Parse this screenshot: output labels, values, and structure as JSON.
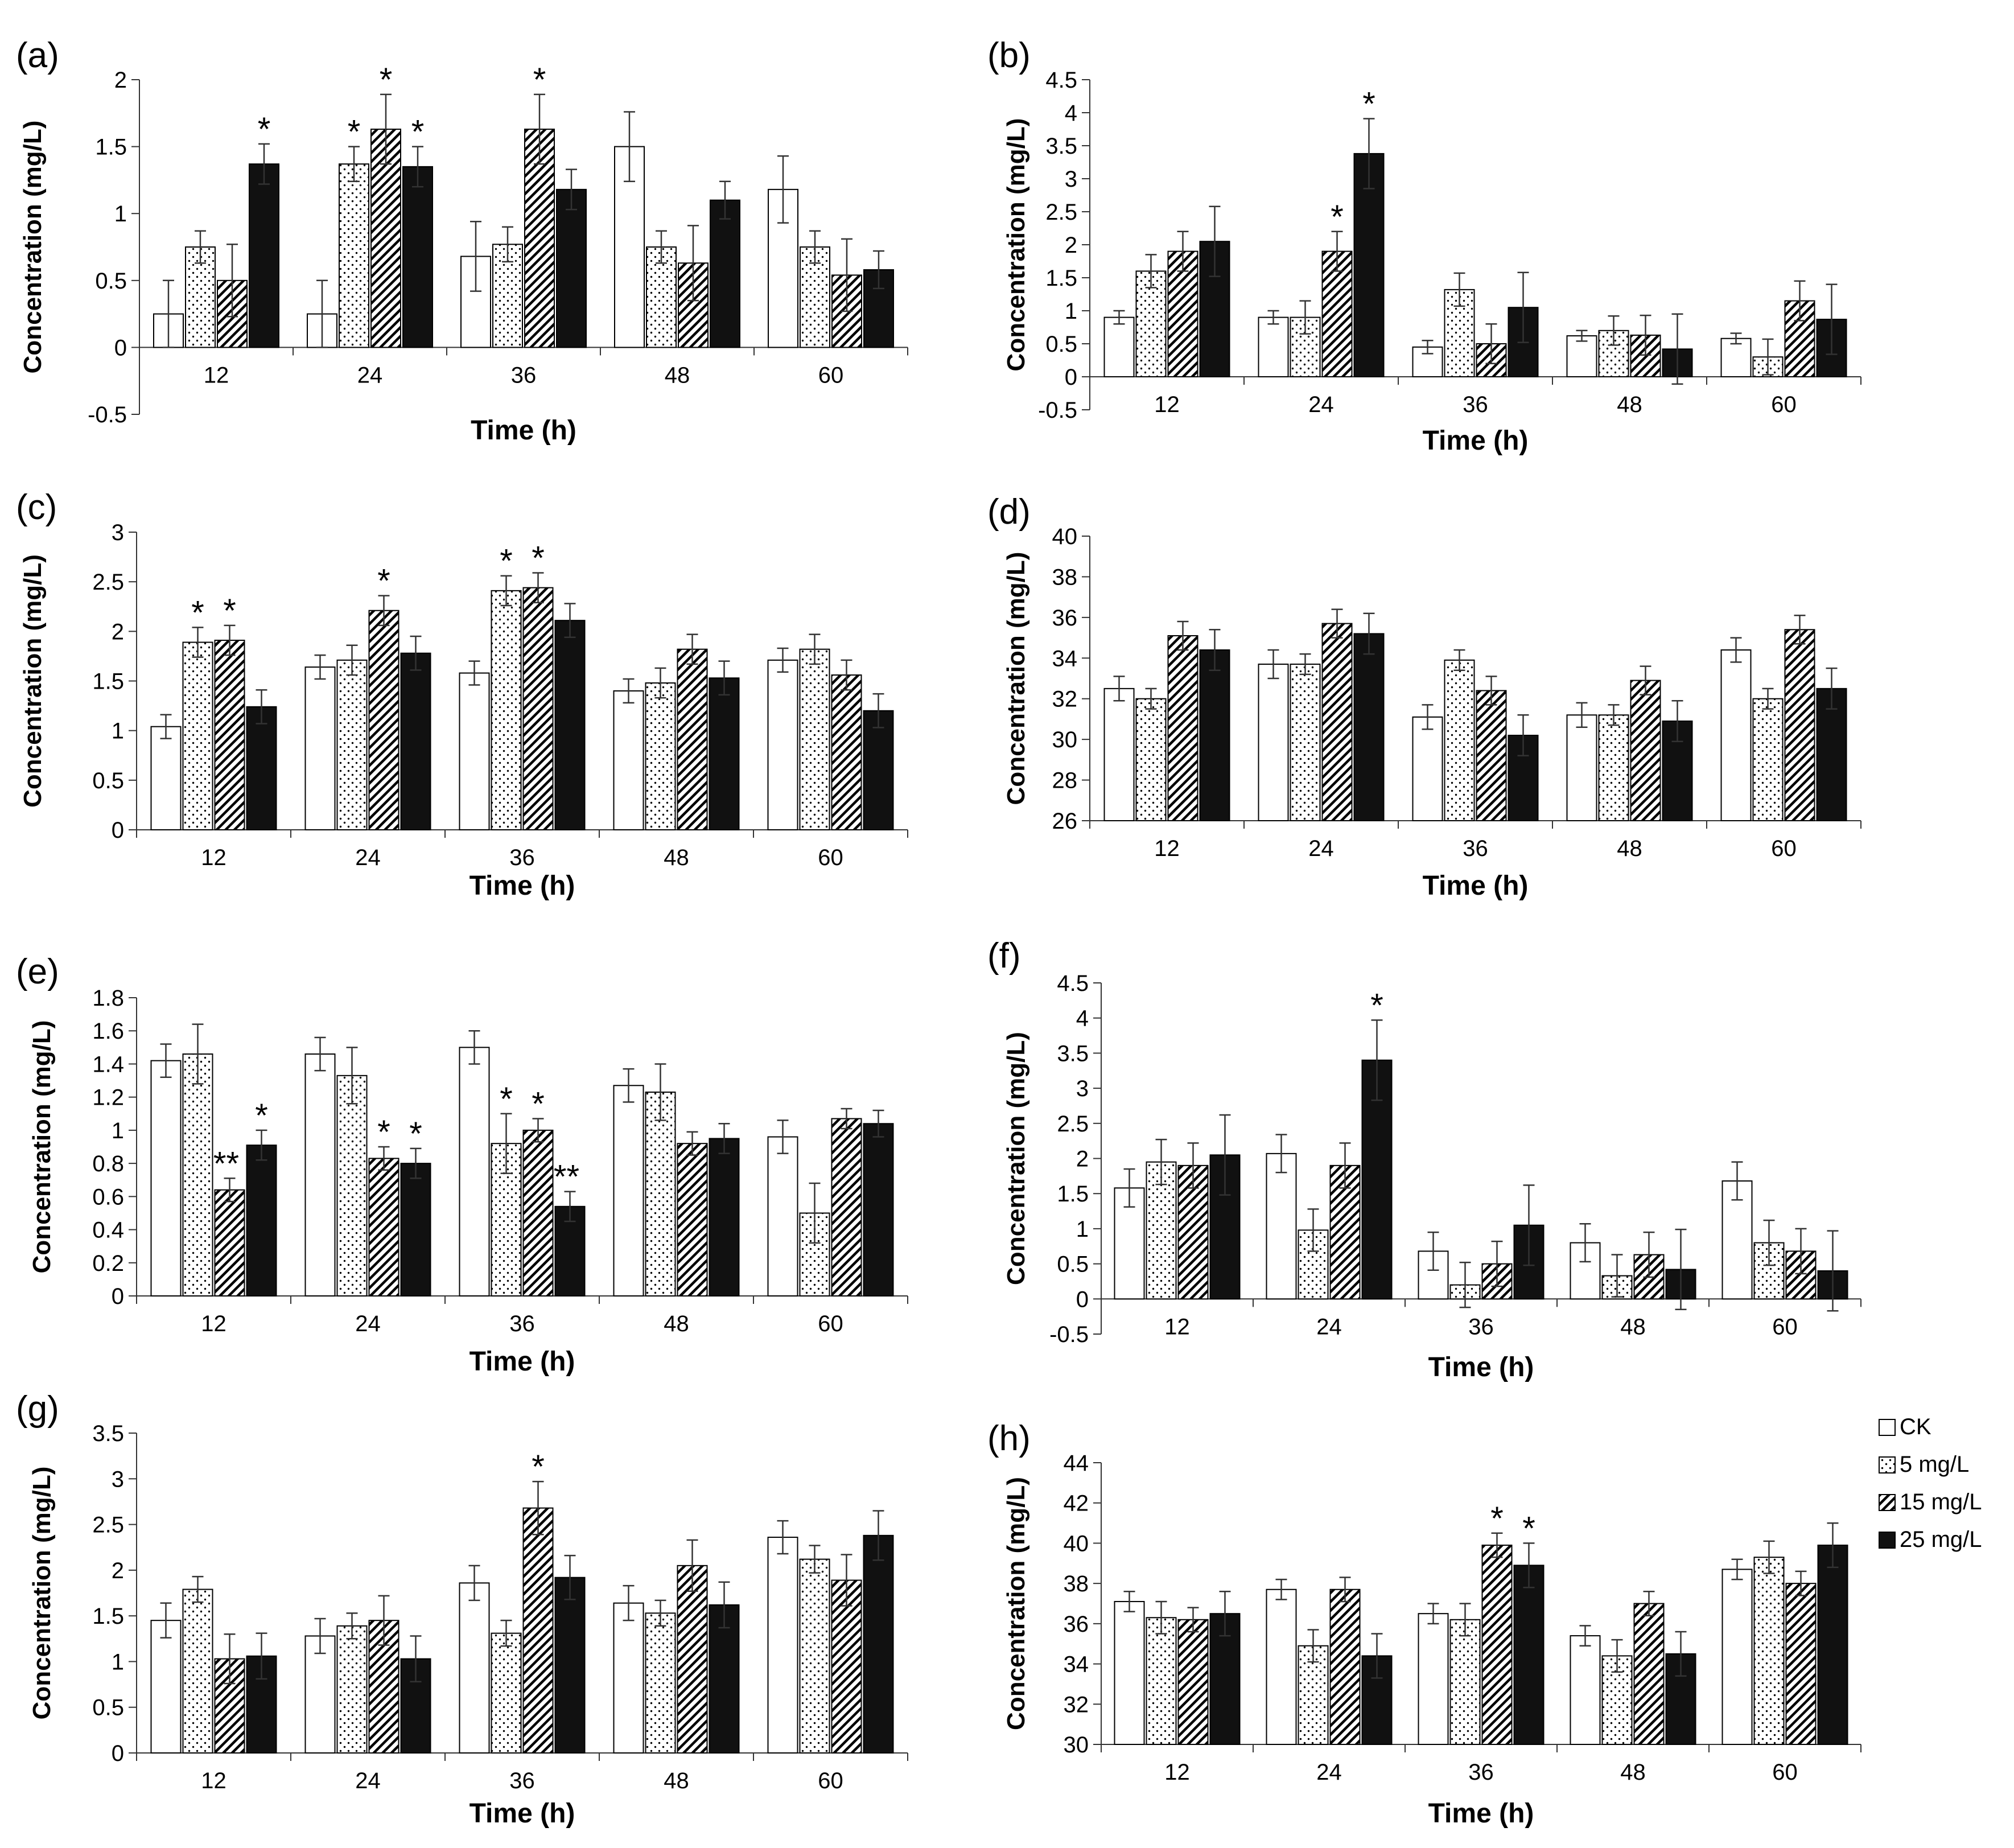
{
  "figure": {
    "legend": [
      {
        "key": "ck",
        "label": "CK"
      },
      {
        "key": "m5",
        "label": "5 mg/L"
      },
      {
        "key": "m15",
        "label": "15 mg/L"
      },
      {
        "key": "m25",
        "label": "25 mg/L"
      }
    ]
  },
  "chart_data": [
    {
      "id": "a",
      "panel_label": "(a)",
      "type": "bar",
      "ylabel": "Concentration (mg/L)",
      "xlabel": "Time (h)",
      "categories": [
        "12",
        "24",
        "36",
        "48",
        "60"
      ],
      "ylim": [
        -0.5,
        2
      ],
      "yticks": [
        "-0.5",
        "0",
        "0.5",
        "1",
        "1.5",
        "2"
      ],
      "series": [
        {
          "name": "CK",
          "values": [
            0.25,
            0.25,
            0.68,
            1.5,
            1.18
          ],
          "errors": [
            0.25,
            0.25,
            0.26,
            0.26,
            0.25
          ]
        },
        {
          "name": "5 mg/L",
          "values": [
            0.75,
            1.37,
            0.77,
            0.75,
            0.75
          ],
          "errors": [
            0.12,
            0.13,
            0.13,
            0.12,
            0.12
          ]
        },
        {
          "name": "15 mg/L",
          "values": [
            0.5,
            1.63,
            1.63,
            0.63,
            0.54
          ],
          "errors": [
            0.27,
            0.26,
            0.26,
            0.28,
            0.27
          ]
        },
        {
          "name": "25 mg/L",
          "values": [
            1.37,
            1.35,
            1.18,
            1.1,
            0.58
          ],
          "errors": [
            0.15,
            0.15,
            0.15,
            0.14,
            0.14
          ]
        }
      ],
      "stars": [
        [
          "",
          "",
          "",
          "*"
        ],
        [
          "",
          "*",
          "*",
          "*"
        ],
        [
          "",
          "",
          "*",
          ""
        ],
        [
          "",
          "",
          "",
          ""
        ],
        [
          "",
          "",
          "",
          ""
        ]
      ]
    },
    {
      "id": "b",
      "panel_label": "(b)",
      "type": "bar",
      "ylabel": "Concentration (mg/L)",
      "xlabel": "Time (h)",
      "categories": [
        "12",
        "24",
        "36",
        "48",
        "60"
      ],
      "ylim": [
        -0.5,
        4.5
      ],
      "yticks": [
        "-0.5",
        "0",
        "0.5",
        "1",
        "1.5",
        "2",
        "2.5",
        "3",
        "3.5",
        "4",
        "4.5"
      ],
      "series": [
        {
          "name": "CK",
          "values": [
            0.9,
            0.9,
            0.45,
            0.62,
            0.58
          ],
          "errors": [
            0.1,
            0.1,
            0.1,
            0.08,
            0.08
          ]
        },
        {
          "name": "5 mg/L",
          "values": [
            1.6,
            0.9,
            1.32,
            0.7,
            0.3
          ],
          "errors": [
            0.25,
            0.25,
            0.25,
            0.22,
            0.27
          ]
        },
        {
          "name": "15 mg/L",
          "values": [
            1.9,
            1.9,
            0.5,
            0.63,
            1.15
          ],
          "errors": [
            0.3,
            0.3,
            0.3,
            0.3,
            0.3
          ]
        },
        {
          "name": "25 mg/L",
          "values": [
            2.05,
            3.38,
            1.05,
            0.42,
            0.87
          ],
          "errors": [
            0.53,
            0.53,
            0.53,
            0.53,
            0.53
          ]
        }
      ],
      "stars": [
        [
          "",
          "",
          "",
          ""
        ],
        [
          "",
          "",
          "*",
          "*"
        ],
        [
          "",
          "",
          "",
          ""
        ],
        [
          "",
          "",
          "",
          ""
        ],
        [
          "",
          "",
          "",
          ""
        ]
      ]
    },
    {
      "id": "c",
      "panel_label": "(c)",
      "type": "bar",
      "ylabel": "Concentration (mg/L)",
      "xlabel": "Time (h)",
      "categories": [
        "12",
        "24",
        "36",
        "48",
        "60"
      ],
      "ylim": [
        0,
        3
      ],
      "yticks": [
        "0",
        "0.5",
        "1",
        "1.5",
        "2",
        "2.5",
        "3"
      ],
      "series": [
        {
          "name": "CK",
          "values": [
            1.04,
            1.64,
            1.58,
            1.4,
            1.71
          ],
          "errors": [
            0.12,
            0.12,
            0.12,
            0.12,
            0.12
          ]
        },
        {
          "name": "5 mg/L",
          "values": [
            1.89,
            1.71,
            2.41,
            1.48,
            1.82
          ],
          "errors": [
            0.15,
            0.15,
            0.15,
            0.15,
            0.15
          ]
        },
        {
          "name": "15 mg/L",
          "values": [
            1.91,
            2.21,
            2.44,
            1.82,
            1.56
          ],
          "errors": [
            0.15,
            0.15,
            0.15,
            0.15,
            0.15
          ]
        },
        {
          "name": "25 mg/L",
          "values": [
            1.24,
            1.78,
            2.11,
            1.53,
            1.2
          ],
          "errors": [
            0.17,
            0.17,
            0.17,
            0.17,
            0.17
          ]
        }
      ],
      "stars": [
        [
          "",
          "*",
          "*",
          ""
        ],
        [
          "",
          "",
          "*",
          ""
        ],
        [
          "",
          "*",
          "*",
          ""
        ],
        [
          "",
          "",
          "",
          ""
        ],
        [
          "",
          "",
          "",
          ""
        ]
      ]
    },
    {
      "id": "d",
      "panel_label": "(d)",
      "type": "bar",
      "ylabel": "Concentration (mg/L)",
      "xlabel": "Time  (h)",
      "categories": [
        "12",
        "24",
        "36",
        "48",
        "60"
      ],
      "ylim": [
        26,
        40
      ],
      "yticks": [
        "26",
        "28",
        "30",
        "32",
        "34",
        "36",
        "38",
        "40"
      ],
      "series": [
        {
          "name": "CK",
          "values": [
            32.5,
            33.7,
            31.1,
            31.2,
            34.4
          ],
          "errors": [
            0.6,
            0.7,
            0.6,
            0.6,
            0.6
          ]
        },
        {
          "name": "5 mg/L",
          "values": [
            32.0,
            33.7,
            33.9,
            31.2,
            32.0
          ],
          "errors": [
            0.5,
            0.5,
            0.5,
            0.5,
            0.5
          ]
        },
        {
          "name": "15 mg/L",
          "values": [
            35.1,
            35.7,
            32.4,
            32.9,
            35.4
          ],
          "errors": [
            0.7,
            0.7,
            0.7,
            0.7,
            0.7
          ]
        },
        {
          "name": "25 mg/L",
          "values": [
            34.4,
            35.2,
            30.2,
            30.9,
            32.5
          ],
          "errors": [
            1.0,
            1.0,
            1.0,
            1.0,
            1.0
          ]
        }
      ],
      "stars": [
        [
          "",
          "",
          "",
          ""
        ],
        [
          "",
          "",
          "",
          ""
        ],
        [
          "",
          "",
          "",
          ""
        ],
        [
          "",
          "",
          "",
          ""
        ],
        [
          "",
          "",
          "",
          ""
        ]
      ]
    },
    {
      "id": "e",
      "panel_label": "(e)",
      "type": "bar",
      "ylabel": "Concentration (mg/L)",
      "xlabel": "Time (h)",
      "categories": [
        "12",
        "24",
        "36",
        "48",
        "60"
      ],
      "ylim": [
        0,
        1.8
      ],
      "yticks": [
        "0",
        "0.2",
        "0.4",
        "0.6",
        "0.8",
        "1",
        "1.2",
        "1.4",
        "1.6",
        "1.8"
      ],
      "series": [
        {
          "name": "CK",
          "values": [
            1.42,
            1.46,
            1.5,
            1.27,
            0.96
          ],
          "errors": [
            0.1,
            0.1,
            0.1,
            0.1,
            0.1
          ]
        },
        {
          "name": "5 mg/L",
          "values": [
            1.46,
            1.33,
            0.92,
            1.23,
            0.5
          ],
          "errors": [
            0.18,
            0.17,
            0.18,
            0.17,
            0.18
          ]
        },
        {
          "name": "15 mg/L",
          "values": [
            0.64,
            0.83,
            1.0,
            0.92,
            1.07
          ],
          "errors": [
            0.07,
            0.07,
            0.07,
            0.07,
            0.06
          ]
        },
        {
          "name": "25 mg/L",
          "values": [
            0.91,
            0.8,
            0.54,
            0.95,
            1.04
          ],
          "errors": [
            0.09,
            0.09,
            0.09,
            0.09,
            0.08
          ]
        }
      ],
      "stars": [
        [
          "",
          "",
          "**",
          "*"
        ],
        [
          "",
          "",
          "*",
          "*"
        ],
        [
          "",
          "*",
          "*",
          "**"
        ],
        [
          "",
          "",
          "",
          ""
        ],
        [
          "",
          "",
          "",
          ""
        ]
      ]
    },
    {
      "id": "f",
      "panel_label": "(f)",
      "type": "bar",
      "ylabel": "Concentration (mg/L)",
      "xlabel": "Time (h)",
      "categories": [
        "12",
        "24",
        "36",
        "48",
        "60"
      ],
      "ylim": [
        -0.5,
        4.5
      ],
      "yticks": [
        "-0.5",
        "0",
        "0.5",
        "1",
        "1.5",
        "2",
        "2.5",
        "3",
        "3.5",
        "4",
        "4.5"
      ],
      "series": [
        {
          "name": "CK",
          "values": [
            1.58,
            2.07,
            0.68,
            0.8,
            1.68
          ],
          "errors": [
            0.27,
            0.27,
            0.27,
            0.27,
            0.27
          ]
        },
        {
          "name": "5 mg/L",
          "values": [
            1.95,
            0.98,
            0.2,
            0.33,
            0.8
          ],
          "errors": [
            0.32,
            0.3,
            0.32,
            0.3,
            0.32
          ]
        },
        {
          "name": "15 mg/L",
          "values": [
            1.9,
            1.9,
            0.5,
            0.63,
            0.68
          ],
          "errors": [
            0.32,
            0.32,
            0.32,
            0.32,
            0.32
          ]
        },
        {
          "name": "25 mg/L",
          "values": [
            2.05,
            3.4,
            1.05,
            0.42,
            0.4
          ],
          "errors": [
            0.57,
            0.57,
            0.57,
            0.57,
            0.57
          ]
        }
      ],
      "stars": [
        [
          "",
          "",
          "",
          ""
        ],
        [
          "",
          "",
          "",
          "*"
        ],
        [
          "",
          "",
          "",
          ""
        ],
        [
          "",
          "",
          "",
          ""
        ],
        [
          "",
          "",
          "",
          ""
        ]
      ]
    },
    {
      "id": "g",
      "panel_label": "(g)",
      "type": "bar",
      "ylabel": "Concentration (mg/L)",
      "xlabel": "Time (h)",
      "categories": [
        "12",
        "24",
        "36",
        "48",
        "60"
      ],
      "ylim": [
        0,
        3.5
      ],
      "yticks": [
        "0",
        "0.5",
        "1",
        "1.5",
        "2",
        "2.5",
        "3",
        "3.5"
      ],
      "series": [
        {
          "name": "CK",
          "values": [
            1.45,
            1.28,
            1.86,
            1.64,
            2.36
          ],
          "errors": [
            0.19,
            0.19,
            0.19,
            0.19,
            0.18
          ]
        },
        {
          "name": "5 mg/L",
          "values": [
            1.79,
            1.39,
            1.31,
            1.53,
            2.12
          ],
          "errors": [
            0.14,
            0.14,
            0.14,
            0.14,
            0.15
          ]
        },
        {
          "name": "15 mg/L",
          "values": [
            1.03,
            1.45,
            2.68,
            2.05,
            1.89
          ],
          "errors": [
            0.27,
            0.27,
            0.29,
            0.28,
            0.28
          ]
        },
        {
          "name": "25 mg/L",
          "values": [
            1.06,
            1.03,
            1.92,
            1.62,
            2.38
          ],
          "errors": [
            0.25,
            0.25,
            0.24,
            0.25,
            0.27
          ]
        }
      ],
      "stars": [
        [
          "",
          "",
          "",
          ""
        ],
        [
          "",
          "",
          "",
          ""
        ],
        [
          "",
          "",
          "*",
          ""
        ],
        [
          "",
          "",
          "",
          ""
        ],
        [
          "",
          "",
          "",
          ""
        ]
      ]
    },
    {
      "id": "h",
      "panel_label": "(h)",
      "type": "bar",
      "ylabel": "Concentration (mg/L)",
      "xlabel": "Time (h)",
      "categories": [
        "12",
        "24",
        "36",
        "48",
        "60"
      ],
      "ylim": [
        30,
        44
      ],
      "yticks": [
        "30",
        "32",
        "34",
        "36",
        "38",
        "40",
        "42",
        "44"
      ],
      "series": [
        {
          "name": "CK",
          "values": [
            37.1,
            37.7,
            36.5,
            35.4,
            38.7
          ],
          "errors": [
            0.5,
            0.5,
            0.5,
            0.5,
            0.5
          ]
        },
        {
          "name": "5 mg/L",
          "values": [
            36.3,
            34.9,
            36.2,
            34.4,
            39.3
          ],
          "errors": [
            0.8,
            0.8,
            0.8,
            0.8,
            0.8
          ]
        },
        {
          "name": "15 mg/L",
          "values": [
            36.2,
            37.7,
            39.9,
            37.0,
            38.0
          ],
          "errors": [
            0.6,
            0.6,
            0.6,
            0.6,
            0.6
          ]
        },
        {
          "name": "25 mg/L",
          "values": [
            36.5,
            34.4,
            38.9,
            34.5,
            39.9
          ],
          "errors": [
            1.1,
            1.1,
            1.1,
            1.1,
            1.1
          ]
        }
      ],
      "stars": [
        [
          "",
          "",
          "",
          ""
        ],
        [
          "",
          "",
          "",
          ""
        ],
        [
          "",
          "",
          "*",
          "*"
        ],
        [
          "",
          "",
          "",
          ""
        ],
        [
          "",
          "",
          "",
          ""
        ]
      ]
    }
  ]
}
